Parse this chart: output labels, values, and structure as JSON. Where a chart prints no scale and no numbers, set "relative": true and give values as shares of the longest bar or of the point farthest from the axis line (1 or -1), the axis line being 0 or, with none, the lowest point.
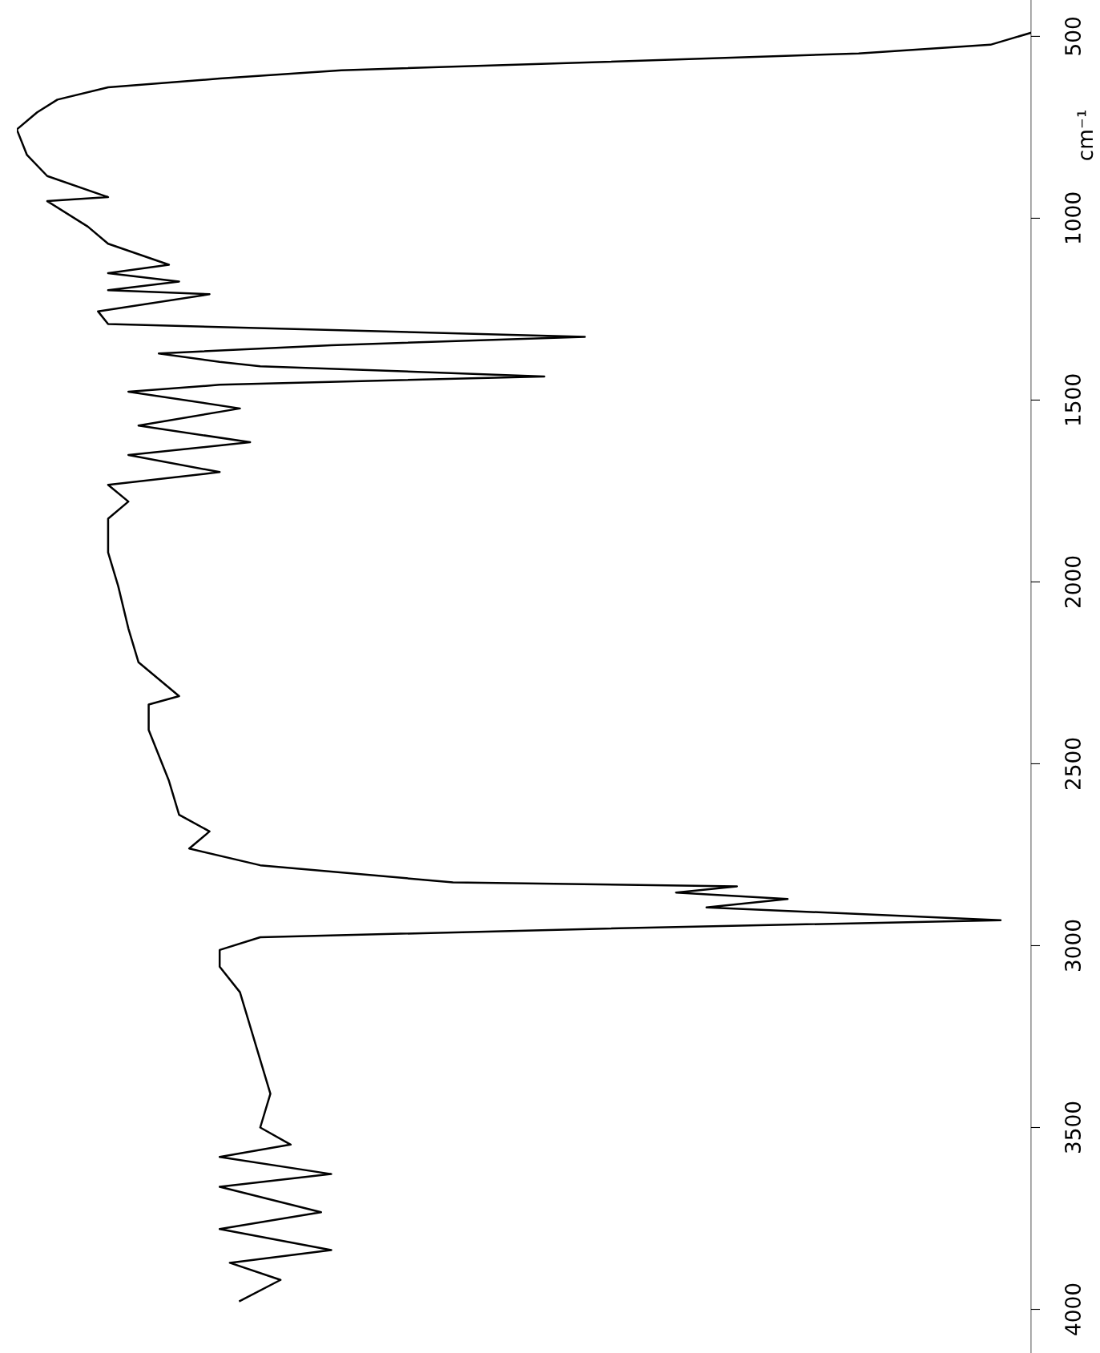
{
  "chart_data": {
    "type": "line",
    "orientation": "horizontal",
    "relative": true,
    "ylabel": "cm⁻¹",
    "ylim": [
      4120,
      400
    ],
    "yticks": [
      500,
      1000,
      1500,
      2000,
      2500,
      3000,
      3500,
      4000
    ],
    "grid": false,
    "legend": false,
    "marker": "none",
    "line_style": "solid",
    "series": [
      {
        "color": "#000000",
        "x": [
          490,
          523,
          547,
          570,
          593,
          616,
          640,
          674,
          709,
          756,
          826,
          884,
          942,
          953,
          1023,
          1070,
          1128,
          1151,
          1174,
          1198,
          1209,
          1256,
          1291,
          1326,
          1349,
          1372,
          1395,
          1407,
          1435,
          1458,
          1477,
          1523,
          1570,
          1616,
          1651,
          1698,
          1733,
          1779,
          1826,
          1919,
          2012,
          2128,
          2221,
          2314,
          2337,
          2407,
          2477,
          2547,
          2640,
          2686,
          2733,
          2779,
          2826,
          2837,
          2854,
          2872,
          2895,
          2930,
          2953,
          2977,
          3012,
          3058,
          3128,
          3221,
          3314,
          3407,
          3500,
          3547,
          3581,
          3628,
          3663,
          3733,
          3779,
          3837,
          3872,
          3919,
          3977
        ],
        "values": [
          1.0,
          0.96,
          0.83,
          0.58,
          0.32,
          0.2,
          0.09,
          0.04,
          0.02,
          0.0,
          0.01,
          0.03,
          0.09,
          0.03,
          0.07,
          0.09,
          0.15,
          0.09,
          0.16,
          0.09,
          0.19,
          0.08,
          0.09,
          0.56,
          0.31,
          0.14,
          0.2,
          0.24,
          0.52,
          0.2,
          0.11,
          0.22,
          0.12,
          0.23,
          0.11,
          0.2,
          0.09,
          0.11,
          0.09,
          0.09,
          0.1,
          0.11,
          0.12,
          0.16,
          0.13,
          0.13,
          0.14,
          0.15,
          0.16,
          0.19,
          0.17,
          0.24,
          0.43,
          0.71,
          0.65,
          0.76,
          0.68,
          0.97,
          0.58,
          0.24,
          0.2,
          0.2,
          0.22,
          0.23,
          0.24,
          0.25,
          0.24,
          0.27,
          0.2,
          0.31,
          0.2,
          0.3,
          0.2,
          0.31,
          0.21,
          0.26,
          0.22
        ]
      }
    ]
  }
}
